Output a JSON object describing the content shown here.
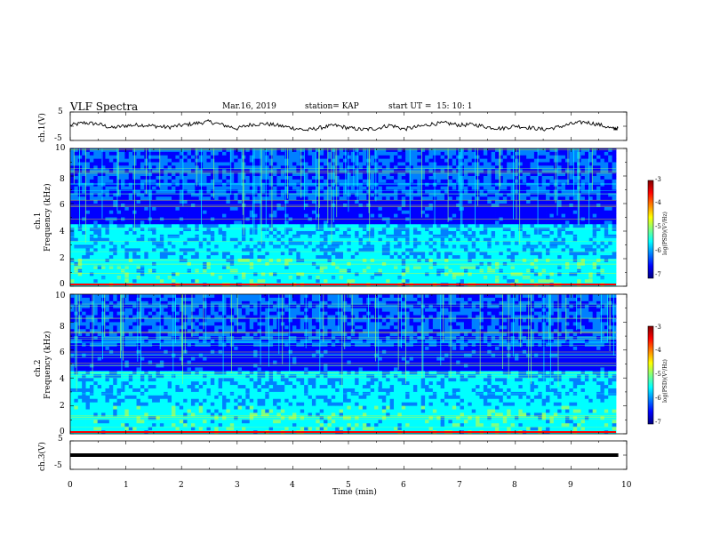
{
  "header": {
    "title": "VLF Spectra",
    "date": "Mar.16, 2019",
    "station": "station= KAP",
    "start": "start UT =  15: 10: 1"
  },
  "colors": {
    "colormap": [
      "#00007f",
      "#0000ff",
      "#0080ff",
      "#00ffff",
      "#80ff80",
      "#ffff00",
      "#ff8000",
      "#ff0000",
      "#800000"
    ],
    "trace": "#000000",
    "background": "#ffffff"
  },
  "chart_data": [
    {
      "type": "line",
      "ylabel": "ch.1(V)",
      "ylim": [
        -5,
        5
      ],
      "yticks": [
        "5",
        "-5"
      ],
      "xlim": [
        0,
        10
      ],
      "x": [
        0,
        0.25,
        0.5,
        0.75,
        1,
        1.25,
        1.5,
        1.75,
        2,
        2.25,
        2.5,
        2.75,
        3,
        3.25,
        3.5,
        3.75,
        4,
        4.25,
        4.5,
        4.75,
        5,
        5.25,
        5.5,
        5.75,
        6,
        6.25,
        6.5,
        6.75,
        7,
        7.25,
        7.5,
        7.75,
        8,
        8.25,
        8.5,
        8.75,
        9,
        9.25,
        9.5,
        9.75,
        9.85
      ],
      "values": [
        0.3,
        1.2,
        0.8,
        -0.6,
        0.2,
        0.5,
        0.1,
        -0.4,
        0.3,
        1.0,
        1.6,
        0.4,
        -0.8,
        0.6,
        0.9,
        0.2,
        -0.6,
        -1.4,
        -0.5,
        0.3,
        -0.6,
        -1.2,
        -0.8,
        0.4,
        -1.0,
        -0.2,
        0.8,
        1.1,
        0.4,
        0.6,
        -0.3,
        -0.8,
        0.1,
        -0.5,
        -1.1,
        -0.4,
        0.8,
        1.5,
        0.6,
        -0.9,
        -0.7
      ]
    },
    {
      "type": "heatmap",
      "ylabel": "ch.1",
      "ylabel2": "Frequency (kHz)",
      "ylim": [
        0,
        10
      ],
      "yticks": [
        "0",
        "2",
        "4",
        "6",
        "8",
        "10"
      ],
      "xlim": [
        0,
        10
      ],
      "colorbar": {
        "label": "log(PSD)(V²/Hz)",
        "ticks": [
          "-3",
          "-4",
          "-5",
          "-6",
          "-7"
        ],
        "range": [
          -7,
          -3
        ]
      }
    },
    {
      "type": "heatmap",
      "ylabel": "ch.2",
      "ylabel2": "Frequency (kHz)",
      "ylim": [
        0,
        10
      ],
      "yticks": [
        "0",
        "2",
        "4",
        "6",
        "8",
        "10"
      ],
      "xlim": [
        0,
        10
      ],
      "colorbar": {
        "label": "log(PSD)(V²/Hz)",
        "ticks": [
          "-3",
          "-4",
          "-5",
          "-6",
          "-7"
        ],
        "range": [
          -7,
          -3
        ]
      }
    },
    {
      "type": "line",
      "ylabel": "ch.3(V)",
      "ylim": [
        -5,
        5
      ],
      "yticks": [
        "5",
        "-5"
      ],
      "xlim": [
        0,
        10
      ],
      "x": [
        0,
        9.85
      ],
      "values": [
        0,
        0
      ]
    }
  ],
  "xaxis": {
    "label": "Time (min)",
    "ticks": [
      "0",
      "1",
      "2",
      "3",
      "4",
      "5",
      "6",
      "7",
      "8",
      "9",
      "10"
    ]
  }
}
